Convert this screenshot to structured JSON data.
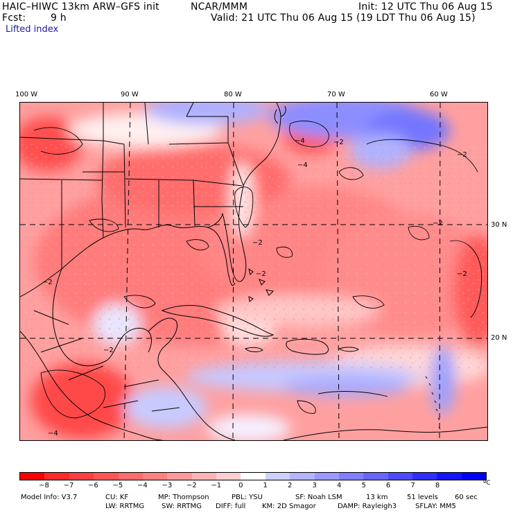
{
  "header": {
    "model": "HAIC–HIWC 13km ARW–GFS init",
    "org": "NCAR/MMM",
    "init": "Init: 12 UTC Thu 06 Aug 15",
    "fcst_label": "Fcst:",
    "fcst_value": "9 h",
    "valid": "Valid: 21 UTC Thu 06 Aug 15 (19 LDT Thu 06 Aug 15)",
    "field": "Lifted index"
  },
  "axes": {
    "longitudes": [
      "100 W",
      "90 W",
      "80 W",
      "70 W",
      "60 W"
    ],
    "latitudes": [
      "30 N",
      "20 N"
    ]
  },
  "colorbar": {
    "ticks": [
      "−8",
      "−7",
      "−6",
      "−5",
      "−4",
      "−3",
      "−2",
      "−1",
      "0",
      "1",
      "2",
      "3",
      "4",
      "5",
      "6",
      "7",
      "8"
    ],
    "unit": "ºC",
    "colors": [
      "#ff0000",
      "#ff2a2a",
      "#ff4040",
      "#ff5555",
      "#ff6a6a",
      "#ff8080",
      "#ff9a9a",
      "#ffb4b4",
      "#ffcfcf",
      "#ffffff",
      "#cfd0ff",
      "#b4b4ff",
      "#9a9aff",
      "#8080ff",
      "#6666ff",
      "#4a4aff",
      "#2e2eff",
      "#1515ff",
      "#0000ff"
    ]
  },
  "footer": {
    "line1": [
      "Model Info: V3.7",
      "CU: KF",
      "MP: Thompson",
      "PBL: YSU",
      "SF: Noah LSM",
      "13 km",
      "51 levels",
      "60 sec"
    ],
    "line2": [
      "LW: RRTMG",
      "SW: RRTMG",
      "DIFF: full",
      "KM: 2D Smagor",
      "DAMP: Rayleigh3",
      "SFLAY: MM5"
    ]
  },
  "map": {
    "contour_labels": [
      "−2",
      "−2",
      "−2",
      "−4",
      "−4",
      "−2",
      "−2",
      "−2",
      "−2",
      "−2",
      "−4"
    ]
  }
}
